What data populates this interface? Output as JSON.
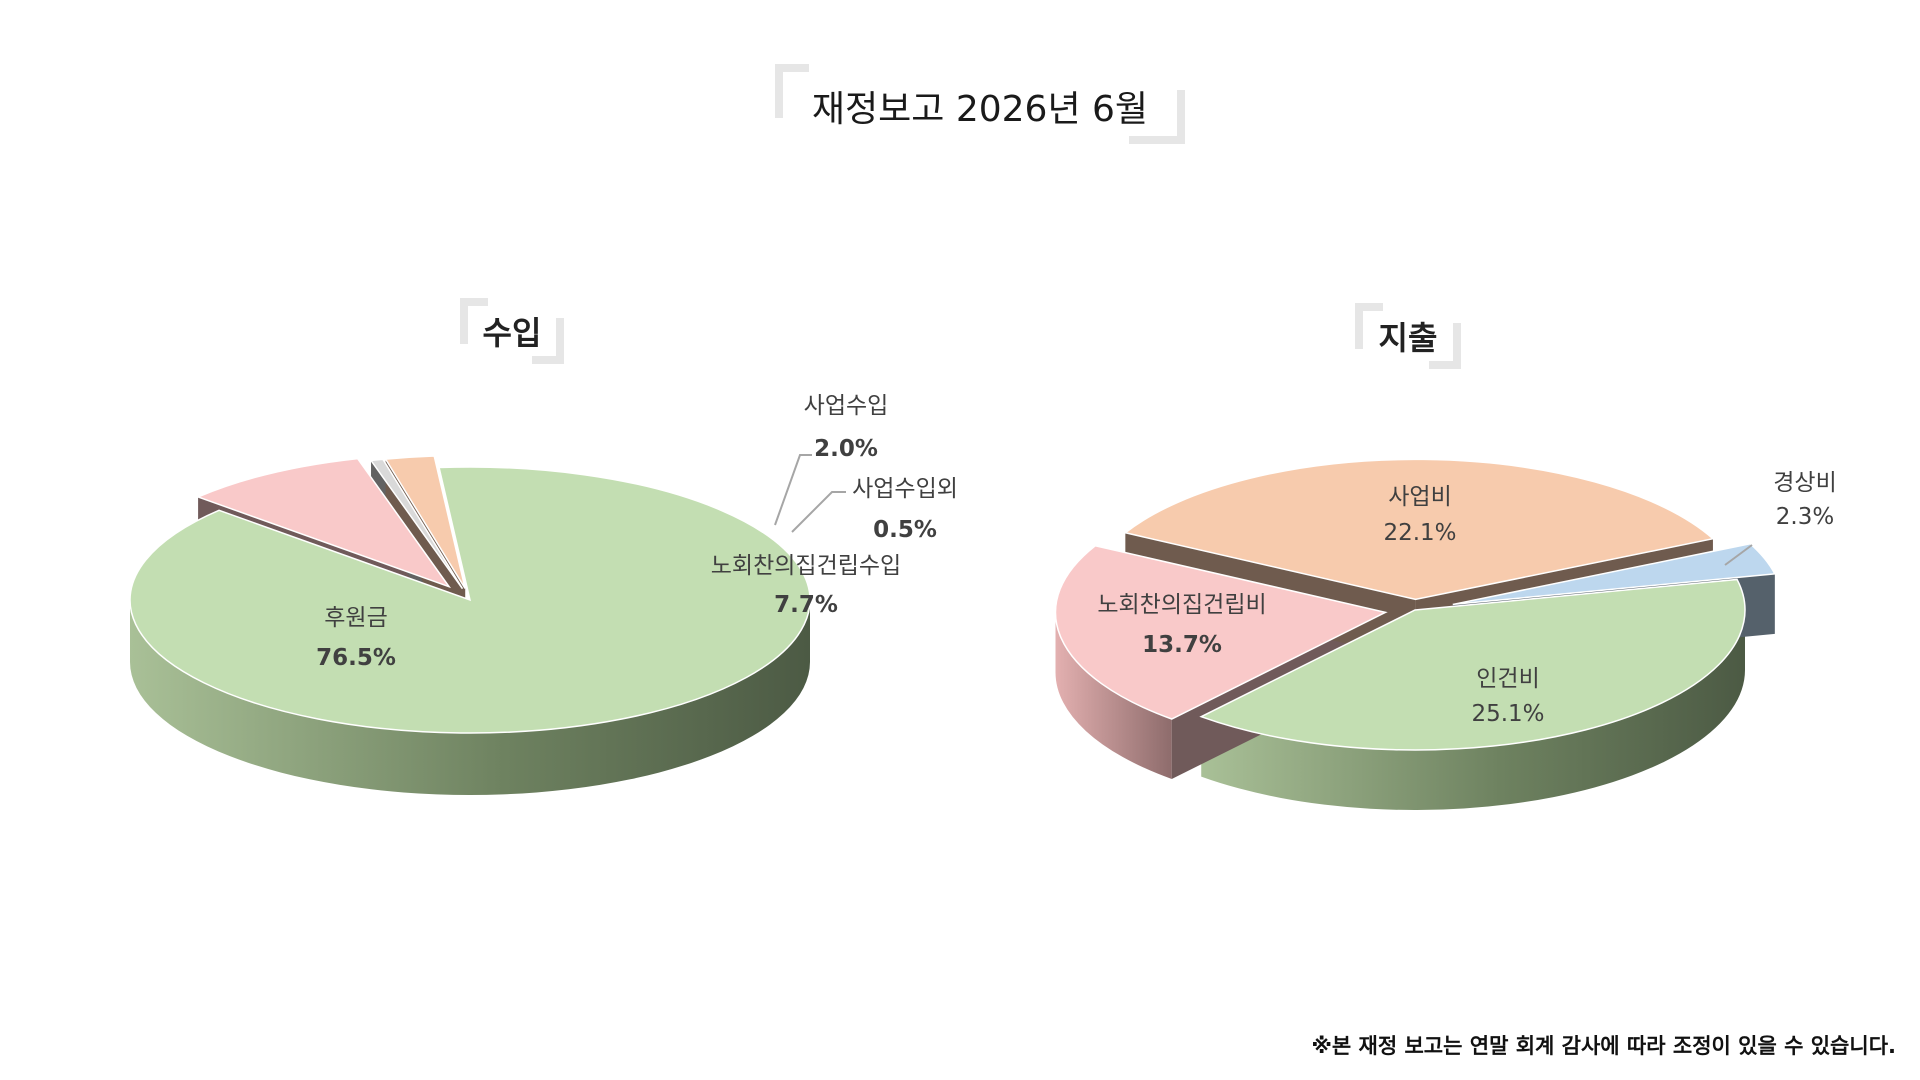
{
  "title": "재정보고 2026년 6월",
  "footnote": "※본 재정 보고는 연말 회계 감사에 따라 조정이 있을 수 있습니다.",
  "chart_data": [
    {
      "type": "pie",
      "style": "3d-exploded",
      "title": "수입",
      "slices": [
        {
          "label": "후원금",
          "value": 76.5,
          "value_label": "76.5%",
          "color": "#c3deb2"
        },
        {
          "label": "노회찬의집건립수입",
          "value": 7.7,
          "value_label": "7.7%",
          "color": "#f9c9c9"
        },
        {
          "label": "사업수입외",
          "value": 0.5,
          "value_label": "0.5%",
          "color": "#d9d9d9"
        },
        {
          "label": "사업수입",
          "value": 2.0,
          "value_label": "2.0%",
          "color": "#f7cbad"
        }
      ]
    },
    {
      "type": "pie",
      "style": "3d-exploded",
      "title": "지출",
      "slices": [
        {
          "label": "인건비",
          "value": 25.1,
          "value_label": "25.1%",
          "color": "#c3deb2"
        },
        {
          "label": "노회찬의집건립비",
          "value": 13.7,
          "value_label": "13.7%",
          "color": "#f9c9c9"
        },
        {
          "label": "사업비",
          "value": 22.1,
          "value_label": "22.1%",
          "color": "#f7cbad"
        },
        {
          "label": "경상비",
          "value": 2.3,
          "value_label": "2.3%",
          "color": "#bdd7ee"
        }
      ]
    }
  ]
}
